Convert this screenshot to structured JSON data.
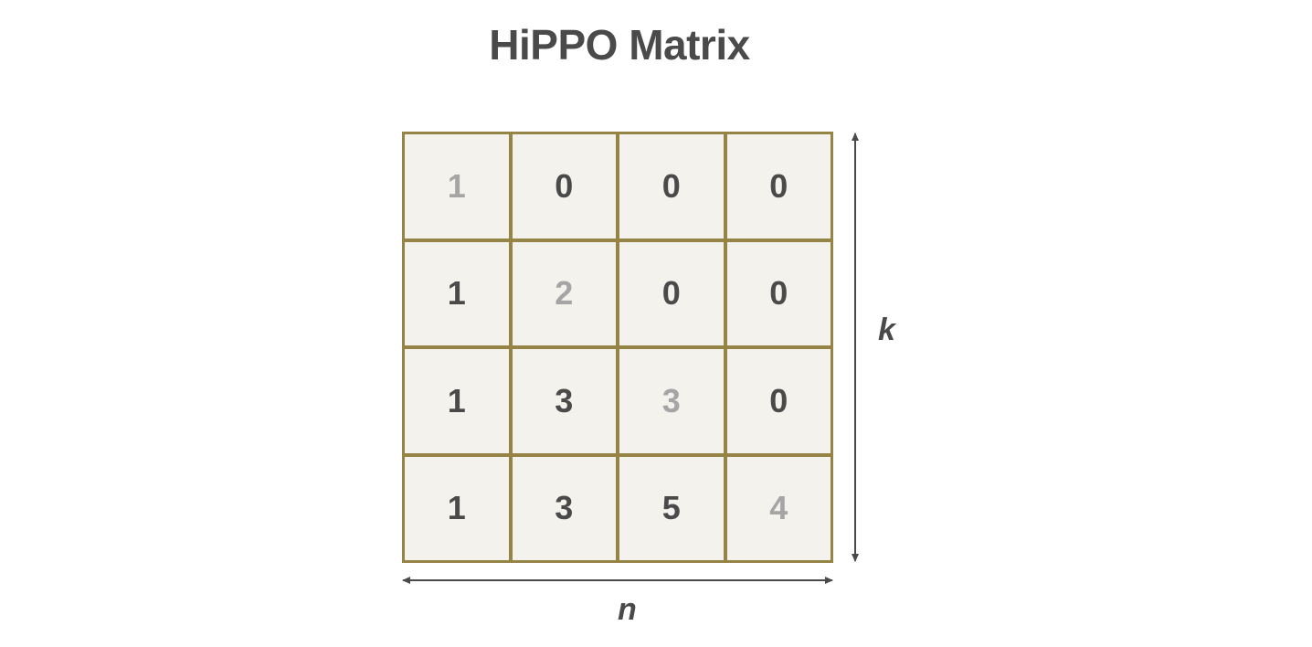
{
  "title": "HiPPO Matrix",
  "matrix": [
    [
      "1",
      "0",
      "0",
      "0"
    ],
    [
      "1",
      "2",
      "0",
      "0"
    ],
    [
      "1",
      "3",
      "3",
      "0"
    ],
    [
      "1",
      "3",
      "5",
      "4"
    ]
  ],
  "axes": {
    "row_label": "k",
    "col_label": "n"
  },
  "colors": {
    "grid_border": "#958445",
    "cell_fill": "#f4f2ec",
    "text": "#4a4a4a",
    "diagonal_text": "#a5a5a5"
  }
}
